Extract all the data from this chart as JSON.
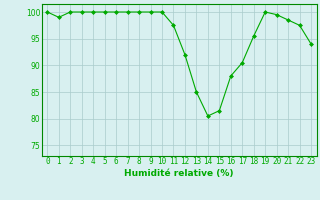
{
  "x": [
    0,
    1,
    2,
    3,
    4,
    5,
    6,
    7,
    8,
    9,
    10,
    11,
    12,
    13,
    14,
    15,
    16,
    17,
    18,
    19,
    20,
    21,
    22,
    23
  ],
  "y": [
    100,
    99,
    100,
    100,
    100,
    100,
    100,
    100,
    100,
    100,
    100,
    97.5,
    92,
    85,
    80.5,
    81.5,
    88,
    90.5,
    95.5,
    100,
    99.5,
    98.5,
    97.5,
    94
  ],
  "line_color": "#00aa00",
  "marker": "D",
  "marker_size": 2.0,
  "bg_color": "#d8f0f0",
  "grid_color": "#aacccc",
  "xlabel": "Humidité relative (%)",
  "xlabel_color": "#00aa00",
  "ylabel_ticks": [
    75,
    80,
    85,
    90,
    95,
    100
  ],
  "xlim": [
    -0.5,
    23.5
  ],
  "ylim": [
    73,
    101.5
  ],
  "tick_color": "#00aa00",
  "spine_color": "#008800",
  "tick_fontsize": 5.5,
  "xlabel_fontsize": 6.5
}
